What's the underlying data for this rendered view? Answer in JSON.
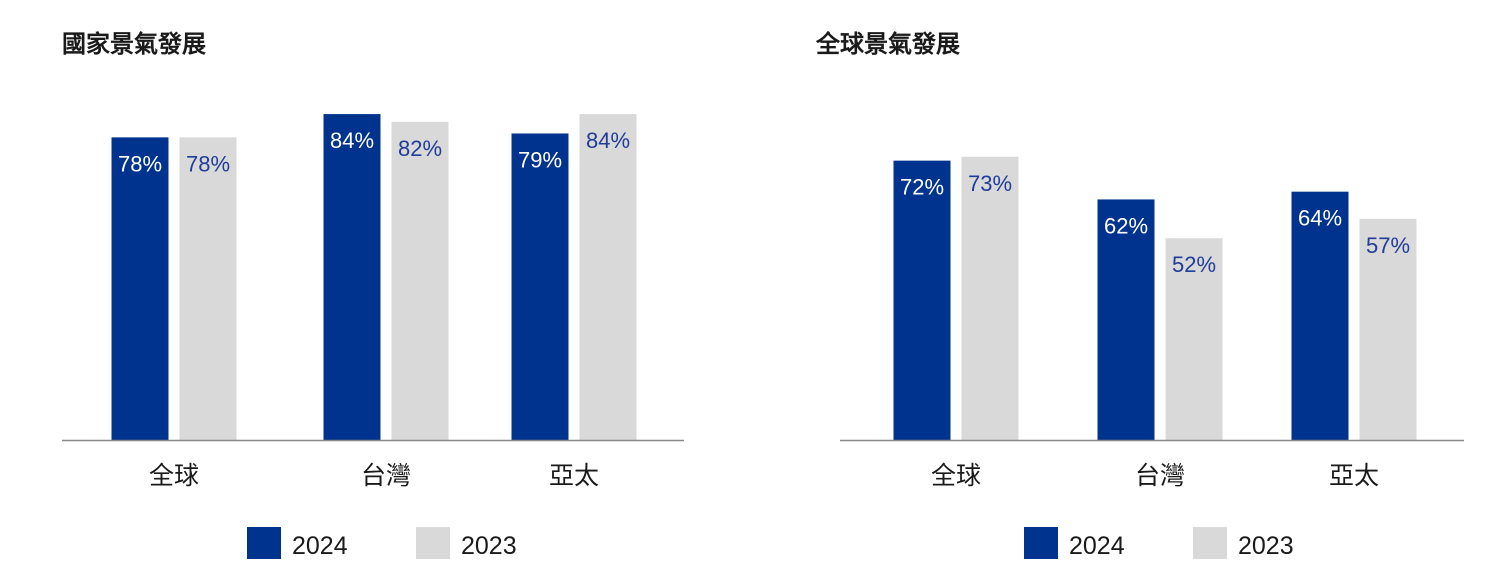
{
  "colors": {
    "y2024": "#00338D",
    "y2023": "#D9D9D9",
    "label_on_dark": "#ffffff",
    "label_on_light": "#1F3D99",
    "axis": "#888888"
  },
  "chart_data": [
    {
      "type": "bar",
      "title": "國家景氣發展",
      "categories": [
        "全球",
        "台灣",
        "亞太"
      ],
      "series": [
        {
          "name": "2024",
          "values": [
            78,
            84,
            79
          ],
          "labels": [
            "78%",
            "84%",
            "79%"
          ]
        },
        {
          "name": "2023",
          "values": [
            78,
            82,
            84
          ],
          "labels": [
            "78%",
            "82%",
            "84%"
          ]
        }
      ],
      "legend": "bottom",
      "grid": false
    },
    {
      "type": "bar",
      "title": "全球景氣發展",
      "categories": [
        "全球",
        "台灣",
        "亞太"
      ],
      "series": [
        {
          "name": "2024",
          "values": [
            72,
            62,
            64
          ],
          "labels": [
            "72%",
            "62%",
            "64%"
          ]
        },
        {
          "name": "2023",
          "values": [
            73,
            52,
            57
          ],
          "labels": [
            "73%",
            "52%",
            "57%"
          ]
        }
      ],
      "legend": "bottom",
      "grid": false
    }
  ]
}
